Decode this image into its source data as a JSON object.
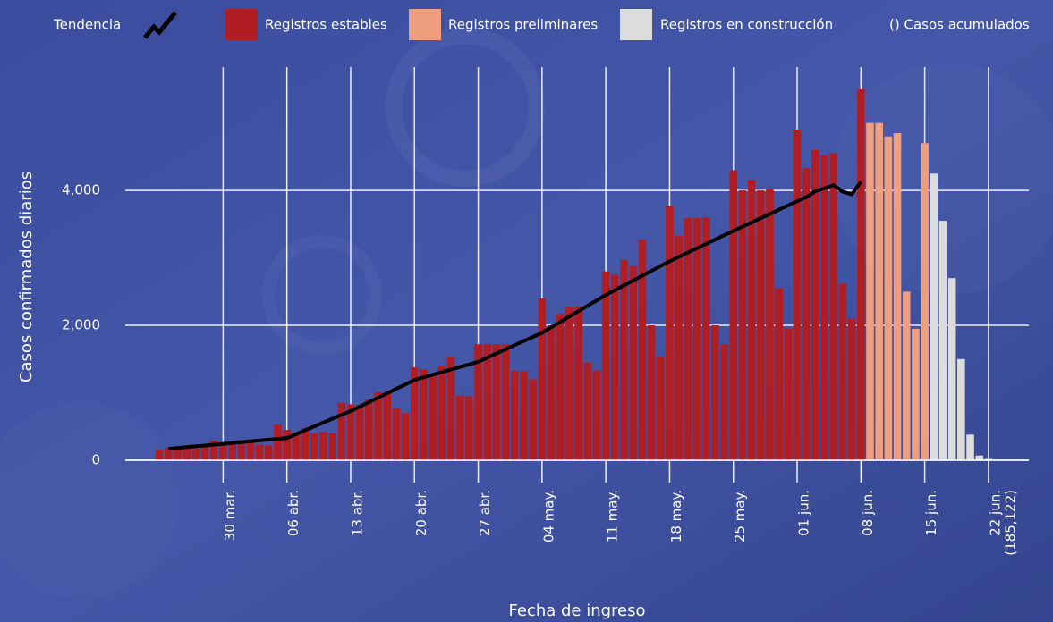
{
  "chart_data": {
    "type": "bar",
    "x_label": "Fecha de ingreso",
    "y_label": "Casos confirmados diarios",
    "cumulative_note": "() Casos acumulados",
    "total_label": "(185,122)",
    "categories": [
      null,
      null,
      null,
      null,
      null,
      null,
      null,
      "30 mar.",
      null,
      null,
      null,
      null,
      null,
      null,
      "06 abr.",
      null,
      null,
      null,
      null,
      null,
      null,
      "13 abr.",
      null,
      null,
      null,
      null,
      null,
      null,
      "20 abr.",
      null,
      null,
      null,
      null,
      null,
      null,
      "27 abr.",
      null,
      null,
      null,
      null,
      null,
      null,
      "04 may.",
      null,
      null,
      null,
      null,
      null,
      null,
      "11 may.",
      null,
      null,
      null,
      null,
      null,
      null,
      "18 may.",
      null,
      null,
      null,
      null,
      null,
      null,
      "25 may.",
      null,
      null,
      null,
      null,
      null,
      null,
      "01 jun.",
      null,
      null,
      null,
      null,
      null,
      null,
      "08 jun.",
      null,
      null,
      null,
      null,
      null,
      null,
      "15 jun.",
      null,
      null,
      null,
      null,
      null,
      null,
      "22 jun."
    ],
    "ylim": [
      0,
      5830
    ],
    "yticks": [
      0,
      {
        "value": 2000,
        "label": "2,000"
      },
      {
        "value": 4000,
        "label": "4,000"
      }
    ],
    "grid": true,
    "series": [
      {
        "name": "Tendencia",
        "kind": "line",
        "color": "#000000",
        "values": [
          null,
          170,
          182,
          195,
          207,
          219,
          232,
          244,
          256,
          268,
          281,
          293,
          305,
          318,
          330,
          387,
          444,
          501,
          559,
          616,
          673,
          730,
          796,
          861,
          927,
          993,
          1059,
          1124,
          1190,
          1229,
          1267,
          1306,
          1344,
          1383,
          1421,
          1460,
          1521,
          1583,
          1644,
          1706,
          1767,
          1829,
          1890,
          1970,
          2050,
          2130,
          2210,
          2290,
          2370,
          2450,
          2521,
          2593,
          2664,
          2736,
          2807,
          2879,
          2950,
          3014,
          3079,
          3143,
          3207,
          3271,
          3336,
          3400,
          3463,
          3526,
          3589,
          3651,
          3714,
          3777,
          3840,
          3900,
          3990,
          4030,
          4080,
          3980,
          3940,
          4130,
          null,
          null,
          null,
          null,
          null,
          null,
          null,
          null,
          null,
          null,
          null,
          null,
          null,
          null
        ]
      },
      {
        "name": "Registros estables",
        "kind": "bar",
        "color": "#b01e23",
        "values": [
          150,
          180,
          160,
          200,
          170,
          220,
          290,
          270,
          260,
          300,
          280,
          230,
          220,
          530,
          450,
          400,
          480,
          400,
          420,
          400,
          850,
          830,
          820,
          900,
          1010,
          990,
          770,
          700,
          1380,
          1350,
          1280,
          1400,
          1530,
          960,
          950,
          1720,
          1720,
          1720,
          1720,
          1330,
          1320,
          1200,
          2400,
          2000,
          2170,
          2270,
          2280,
          1450,
          1330,
          2800,
          2750,
          2970,
          2880,
          3270,
          2000,
          1530,
          3770,
          3330,
          3590,
          3590,
          3600,
          2000,
          1720,
          4300,
          4000,
          4160,
          4000,
          4020,
          2550,
          1950,
          4900,
          4330,
          4600,
          4520,
          4550,
          2620,
          2100,
          5500,
          null,
          null,
          null,
          null,
          null,
          null,
          null,
          null,
          null,
          null,
          null,
          null,
          null,
          null
        ]
      },
      {
        "name": "Registros preliminares",
        "kind": "bar",
        "color": "#ee9f80",
        "values": [
          null,
          null,
          null,
          null,
          null,
          null,
          null,
          null,
          null,
          null,
          null,
          null,
          null,
          null,
          null,
          null,
          null,
          null,
          null,
          null,
          null,
          null,
          null,
          null,
          null,
          null,
          null,
          null,
          null,
          null,
          null,
          null,
          null,
          null,
          null,
          null,
          null,
          null,
          null,
          null,
          null,
          null,
          null,
          null,
          null,
          null,
          null,
          null,
          null,
          null,
          null,
          null,
          null,
          null,
          null,
          null,
          null,
          null,
          null,
          null,
          null,
          null,
          null,
          null,
          null,
          null,
          null,
          null,
          null,
          null,
          null,
          null,
          null,
          null,
          null,
          null,
          null,
          null,
          5000,
          5000,
          4800,
          4850,
          2500,
          1950,
          4700,
          null,
          null,
          null,
          null,
          null,
          null,
          null
        ]
      },
      {
        "name": "Registros en construcción",
        "kind": "bar",
        "color": "#dcdcdc",
        "values": [
          null,
          null,
          null,
          null,
          null,
          null,
          null,
          null,
          null,
          null,
          null,
          null,
          null,
          null,
          null,
          null,
          null,
          null,
          null,
          null,
          null,
          null,
          null,
          null,
          null,
          null,
          null,
          null,
          null,
          null,
          null,
          null,
          null,
          null,
          null,
          null,
          null,
          null,
          null,
          null,
          null,
          null,
          null,
          null,
          null,
          null,
          null,
          null,
          null,
          null,
          null,
          null,
          null,
          null,
          null,
          null,
          null,
          null,
          null,
          null,
          null,
          null,
          null,
          null,
          null,
          null,
          null,
          null,
          null,
          null,
          null,
          null,
          null,
          null,
          null,
          null,
          null,
          null,
          null,
          null,
          null,
          null,
          null,
          null,
          null,
          4250,
          3550,
          2700,
          1500,
          380,
          70,
          20
        ]
      }
    ]
  }
}
